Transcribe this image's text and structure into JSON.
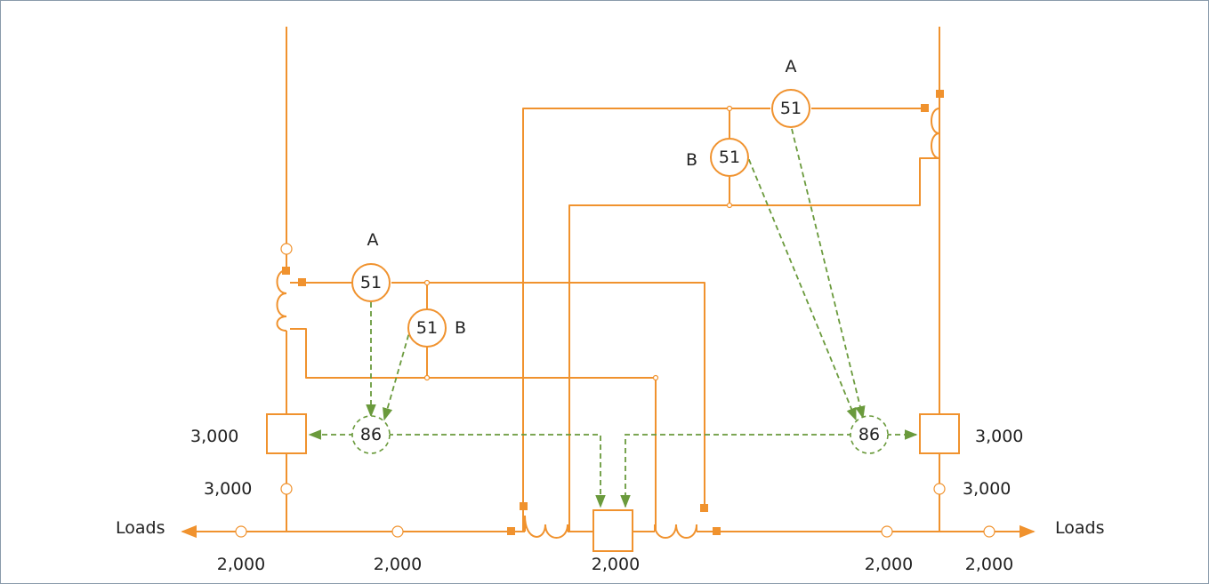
{
  "relays": {
    "left_a": {
      "code": "51",
      "tag": "A"
    },
    "left_b": {
      "code": "51",
      "tag": "B"
    },
    "right_a": {
      "code": "51",
      "tag": "A"
    },
    "right_b": {
      "code": "51",
      "tag": "B"
    },
    "left_lockout": {
      "code": "86"
    },
    "right_lockout": {
      "code": "86"
    }
  },
  "ratings": {
    "left_breaker": "3,000",
    "left_node": "3,000",
    "right_breaker": "3,000",
    "right_node": "3,000",
    "bus_1": "2,000",
    "bus_2": "2,000",
    "tie": "2,000",
    "bus_4": "2,000",
    "bus_5": "2,000"
  },
  "loads": {
    "left": "Loads",
    "right": "Loads"
  },
  "colors": {
    "wiring": "#f0922e",
    "trip_path": "#6a9a3c",
    "frame": "#8a9bab"
  }
}
